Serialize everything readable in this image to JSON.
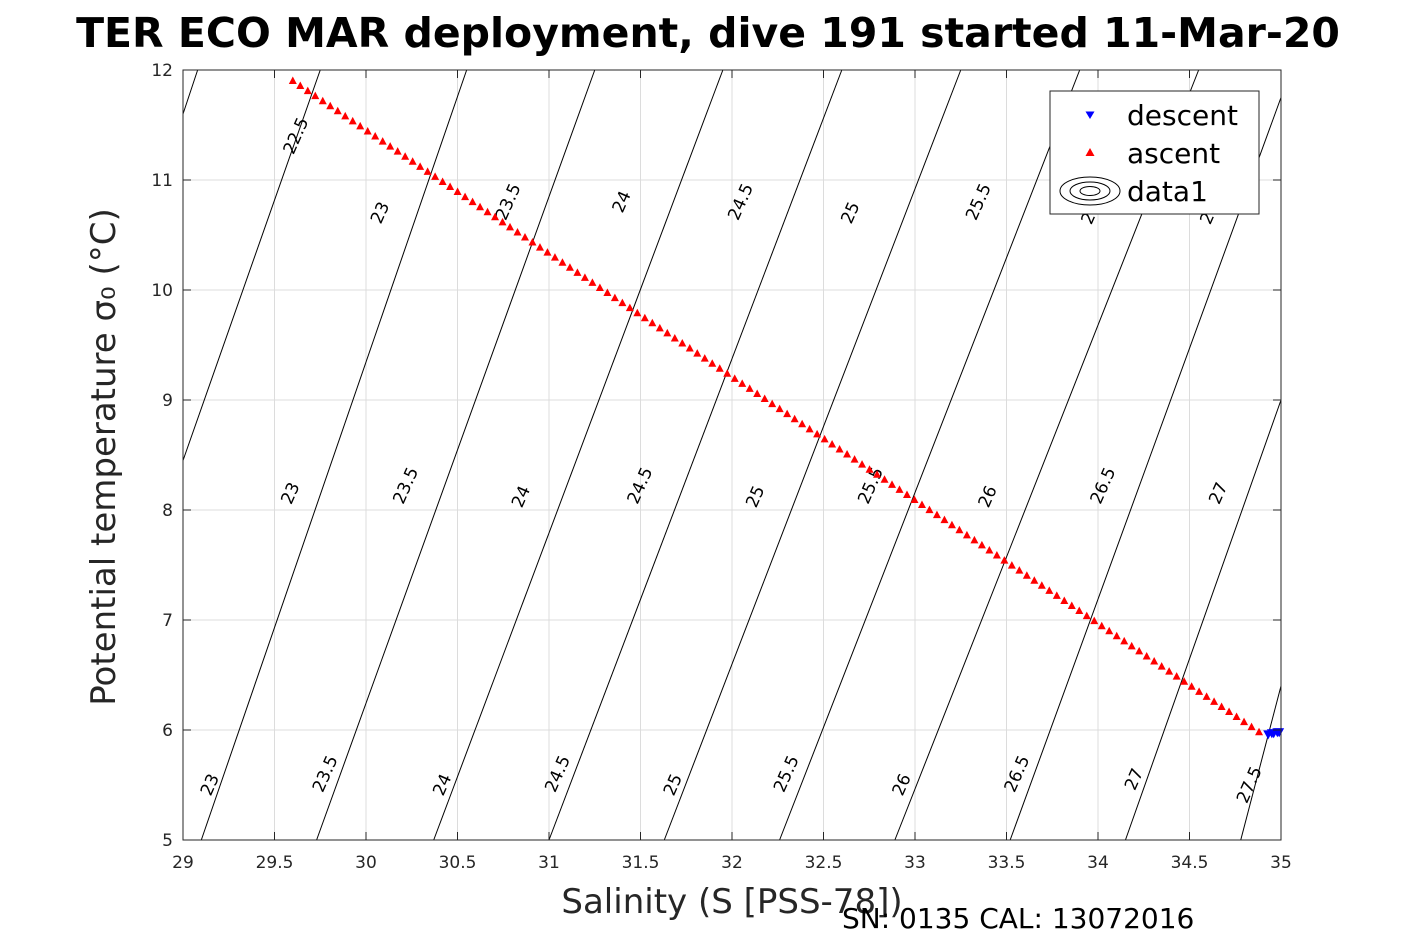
{
  "chart_data": {
    "type": "scatter",
    "title": "TER ECO MAR deployment, dive 191 started 11-Mar-20",
    "xlabel": "Salinity (S [PSS-78])",
    "ylabel": "Potential temperature σ₀ (°C)",
    "footer": "SN: 0135  CAL: 13072016",
    "xlim": [
      29,
      35
    ],
    "ylim": [
      5,
      12
    ],
    "x_ticks": [
      29,
      29.5,
      30,
      30.5,
      31,
      31.5,
      32,
      32.5,
      33,
      33.5,
      34,
      34.5,
      35
    ],
    "y_ticks": [
      5,
      6,
      7,
      8,
      9,
      10,
      11,
      12
    ],
    "grid": true,
    "legend_position": "top-right",
    "series": [
      {
        "name": "descent",
        "marker": "triangle-down",
        "color": "#0000ff",
        "points": [
          [
            34.93,
            5.96
          ],
          [
            34.95,
            5.97
          ],
          [
            34.96,
            5.97
          ],
          [
            34.98,
            5.98
          ],
          [
            34.99,
            5.98
          ]
        ]
      },
      {
        "name": "ascent",
        "marker": "triangle-up",
        "color": "#ff0000",
        "line_start": [
          29.6,
          11.9
        ],
        "line_end": [
          34.88,
          5.98
        ],
        "count": 130
      },
      {
        "name": "data1",
        "marker": "contour",
        "color": "#000000"
      }
    ],
    "contours": [
      {
        "lines": [
          {
            "x0": 29.0,
            "y0": 11.6,
            "x1": 29.08,
            "y1": 12.0
          },
          {
            "x0": 29.0,
            "y0": 8.45,
            "x1": 29.75,
            "y1": 12.0
          },
          {
            "x0": 29.1,
            "y0": 5.0,
            "x1": 30.55,
            "y1": 12.0
          },
          {
            "x0": 29.73,
            "y0": 5.0,
            "x1": 31.25,
            "y1": 12.0
          },
          {
            "x0": 30.37,
            "y0": 5.0,
            "x1": 31.95,
            "y1": 12.0
          },
          {
            "x0": 31.0,
            "y0": 5.0,
            "x1": 32.6,
            "y1": 12.0
          },
          {
            "x0": 31.63,
            "y0": 5.0,
            "x1": 33.25,
            "y1": 12.0
          },
          {
            "x0": 32.26,
            "y0": 5.0,
            "x1": 33.9,
            "y1": 12.0
          },
          {
            "x0": 32.89,
            "y0": 5.0,
            "x1": 34.55,
            "y1": 12.0
          },
          {
            "x0": 33.52,
            "y0": 5.0,
            "x1": 35.0,
            "y1": 11.75
          },
          {
            "x0": 34.15,
            "y0": 5.0,
            "x1": 35.0,
            "y1": 9.0
          },
          {
            "x0": 34.78,
            "y0": 5.0,
            "x1": 35.0,
            "y1": 6.4
          }
        ]
      },
      {
        "labels": [
          {
            "text": "22.5",
            "x": 29.62,
            "y": 11.4
          },
          {
            "text": "23",
            "x": 30.08,
            "y": 10.7
          },
          {
            "text": "23.5",
            "x": 30.78,
            "y": 10.8
          },
          {
            "text": "24",
            "x": 31.4,
            "y": 10.8
          },
          {
            "text": "24.5",
            "x": 32.05,
            "y": 10.8
          },
          {
            "text": "25",
            "x": 32.65,
            "y": 10.7
          },
          {
            "text": "25.5",
            "x": 33.35,
            "y": 10.8
          },
          {
            "text": "2",
            "x": 33.95,
            "y": 10.65
          },
          {
            "text": "2",
            "x": 34.6,
            "y": 10.65
          },
          {
            "text": "23",
            "x": 29.59,
            "y": 8.15
          },
          {
            "text": "23.5",
            "x": 30.22,
            "y": 8.22
          },
          {
            "text": "24",
            "x": 30.85,
            "y": 8.12
          },
          {
            "text": "24.5",
            "x": 31.5,
            "y": 8.22
          },
          {
            "text": "25",
            "x": 32.13,
            "y": 8.12
          },
          {
            "text": "25.5",
            "x": 32.76,
            "y": 8.22
          },
          {
            "text": "26",
            "x": 33.4,
            "y": 8.12
          },
          {
            "text": "26.5",
            "x": 34.03,
            "y": 8.22
          },
          {
            "text": "27",
            "x": 34.66,
            "y": 8.15
          },
          {
            "text": "23",
            "x": 29.15,
            "y": 5.5
          },
          {
            "text": "23.5",
            "x": 29.78,
            "y": 5.6
          },
          {
            "text": "24",
            "x": 30.42,
            "y": 5.5
          },
          {
            "text": "24.5",
            "x": 31.05,
            "y": 5.6
          },
          {
            "text": "25",
            "x": 31.68,
            "y": 5.5
          },
          {
            "text": "25.5",
            "x": 32.3,
            "y": 5.6
          },
          {
            "text": "26",
            "x": 32.93,
            "y": 5.5
          },
          {
            "text": "26.5",
            "x": 33.56,
            "y": 5.6
          },
          {
            "text": "27",
            "x": 34.2,
            "y": 5.55
          },
          {
            "text": "27.5",
            "x": 34.83,
            "y": 5.5
          }
        ]
      }
    ]
  }
}
